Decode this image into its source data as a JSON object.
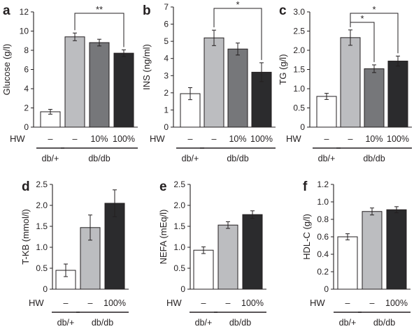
{
  "colors": {
    "db_plus": "#ffffff",
    "db_db_control": "#bcbdc0",
    "hw_10": "#76777a",
    "hw_100": "#2b2b2d"
  },
  "chart_data": [
    {
      "letter": "a",
      "type": "bar",
      "ylabel": "Glucose (g/l)",
      "ylim": [
        0,
        12
      ],
      "ticks": [
        "0",
        "2",
        "4",
        "6",
        "8",
        "10",
        "12"
      ],
      "hw_label": "HW",
      "categories": [
        "–",
        "–",
        "10%",
        "100%"
      ],
      "values": [
        1.6,
        9.4,
        8.8,
        7.7
      ],
      "errors": [
        0.25,
        0.4,
        0.35,
        0.35
      ],
      "bar_colors": [
        "db_plus",
        "db_db_control",
        "hw_10",
        "hw_100"
      ],
      "groups": [
        {
          "label": "db/+",
          "bars": [
            0
          ]
        },
        {
          "label": "db/db",
          "bars": [
            1,
            2,
            3
          ]
        }
      ],
      "significance": [
        {
          "from": 1,
          "to": 3,
          "label": "**"
        }
      ]
    },
    {
      "letter": "b",
      "type": "bar",
      "ylabel": "INS (ng/ml)",
      "ylim": [
        0,
        7
      ],
      "ticks": [
        "0",
        "1",
        "2",
        "3",
        "4",
        "5",
        "6",
        "7"
      ],
      "hw_label": "HW",
      "categories": [
        "–",
        "–",
        "10%",
        "100%"
      ],
      "values": [
        1.95,
        5.2,
        4.55,
        3.2
      ],
      "errors": [
        0.35,
        0.45,
        0.35,
        0.55
      ],
      "bar_colors": [
        "db_plus",
        "db_db_control",
        "hw_10",
        "hw_100"
      ],
      "groups": [
        {
          "label": "db/+",
          "bars": [
            0
          ]
        },
        {
          "label": "db/db",
          "bars": [
            1,
            2,
            3
          ]
        }
      ],
      "significance": [
        {
          "from": 1,
          "to": 3,
          "label": "*"
        }
      ]
    },
    {
      "letter": "c",
      "type": "bar",
      "ylabel": "TG (g/l)",
      "ylim": [
        0,
        3
      ],
      "ticks": [
        "0",
        "0.5",
        "1.0",
        "1.5",
        "2.0",
        "2.5",
        "3.0"
      ],
      "hw_label": "HW",
      "categories": [
        "–",
        "–",
        "10%",
        "100%"
      ],
      "values": [
        0.8,
        2.33,
        1.52,
        1.72
      ],
      "errors": [
        0.08,
        0.2,
        0.1,
        0.13
      ],
      "bar_colors": [
        "db_plus",
        "db_db_control",
        "hw_10",
        "hw_100"
      ],
      "groups": [
        {
          "label": "db/+",
          "bars": [
            0
          ]
        },
        {
          "label": "db/db",
          "bars": [
            1,
            2,
            3
          ]
        }
      ],
      "significance": [
        {
          "from": 1,
          "to": 2,
          "label": "*"
        },
        {
          "from": 1,
          "to": 3,
          "label": "*"
        }
      ]
    },
    {
      "letter": "d",
      "type": "bar",
      "ylabel": "T-KB (mmol/l)",
      "ylim": [
        0,
        2.5
      ],
      "ticks": [
        "0",
        "0.5",
        "1.0",
        "1.5",
        "2.0",
        "2.5"
      ],
      "hw_label": "HW",
      "categories": [
        "–",
        "–",
        "100%"
      ],
      "values": [
        0.45,
        1.47,
        2.05
      ],
      "errors": [
        0.15,
        0.3,
        0.32
      ],
      "bar_colors": [
        "db_plus",
        "db_db_control",
        "hw_100"
      ],
      "groups": [
        {
          "label": "db/+",
          "bars": [
            0
          ]
        },
        {
          "label": "db/db",
          "bars": [
            1,
            2
          ]
        }
      ],
      "significance": []
    },
    {
      "letter": "e",
      "type": "bar",
      "ylabel": "NEFA (mEq/l)",
      "ylim": [
        0,
        2.5
      ],
      "ticks": [
        "0",
        "0.5",
        "1.0",
        "1.5",
        "2.0",
        "2.5"
      ],
      "hw_label": "HW",
      "categories": [
        "–",
        "–",
        "100%"
      ],
      "values": [
        0.93,
        1.53,
        1.78
      ],
      "errors": [
        0.08,
        0.08,
        0.09
      ],
      "bar_colors": [
        "db_plus",
        "db_db_control",
        "hw_100"
      ],
      "groups": [
        {
          "label": "db/+",
          "bars": [
            0
          ]
        },
        {
          "label": "db/db",
          "bars": [
            1,
            2
          ]
        }
      ],
      "significance": []
    },
    {
      "letter": "f",
      "type": "bar",
      "ylabel": "HDL-C (g/l)",
      "ylim": [
        0,
        1.2
      ],
      "ticks": [
        "0",
        "0.2",
        "0.4",
        "0.6",
        "0.8",
        "1.0",
        "1.2"
      ],
      "hw_label": "HW",
      "categories": [
        "–",
        "–",
        "100%"
      ],
      "values": [
        0.6,
        0.89,
        0.91
      ],
      "errors": [
        0.035,
        0.04,
        0.035
      ],
      "bar_colors": [
        "db_plus",
        "db_db_control",
        "hw_100"
      ],
      "groups": [
        {
          "label": "db/+",
          "bars": [
            0
          ]
        },
        {
          "label": "db/db",
          "bars": [
            1,
            2
          ]
        }
      ],
      "significance": []
    }
  ]
}
